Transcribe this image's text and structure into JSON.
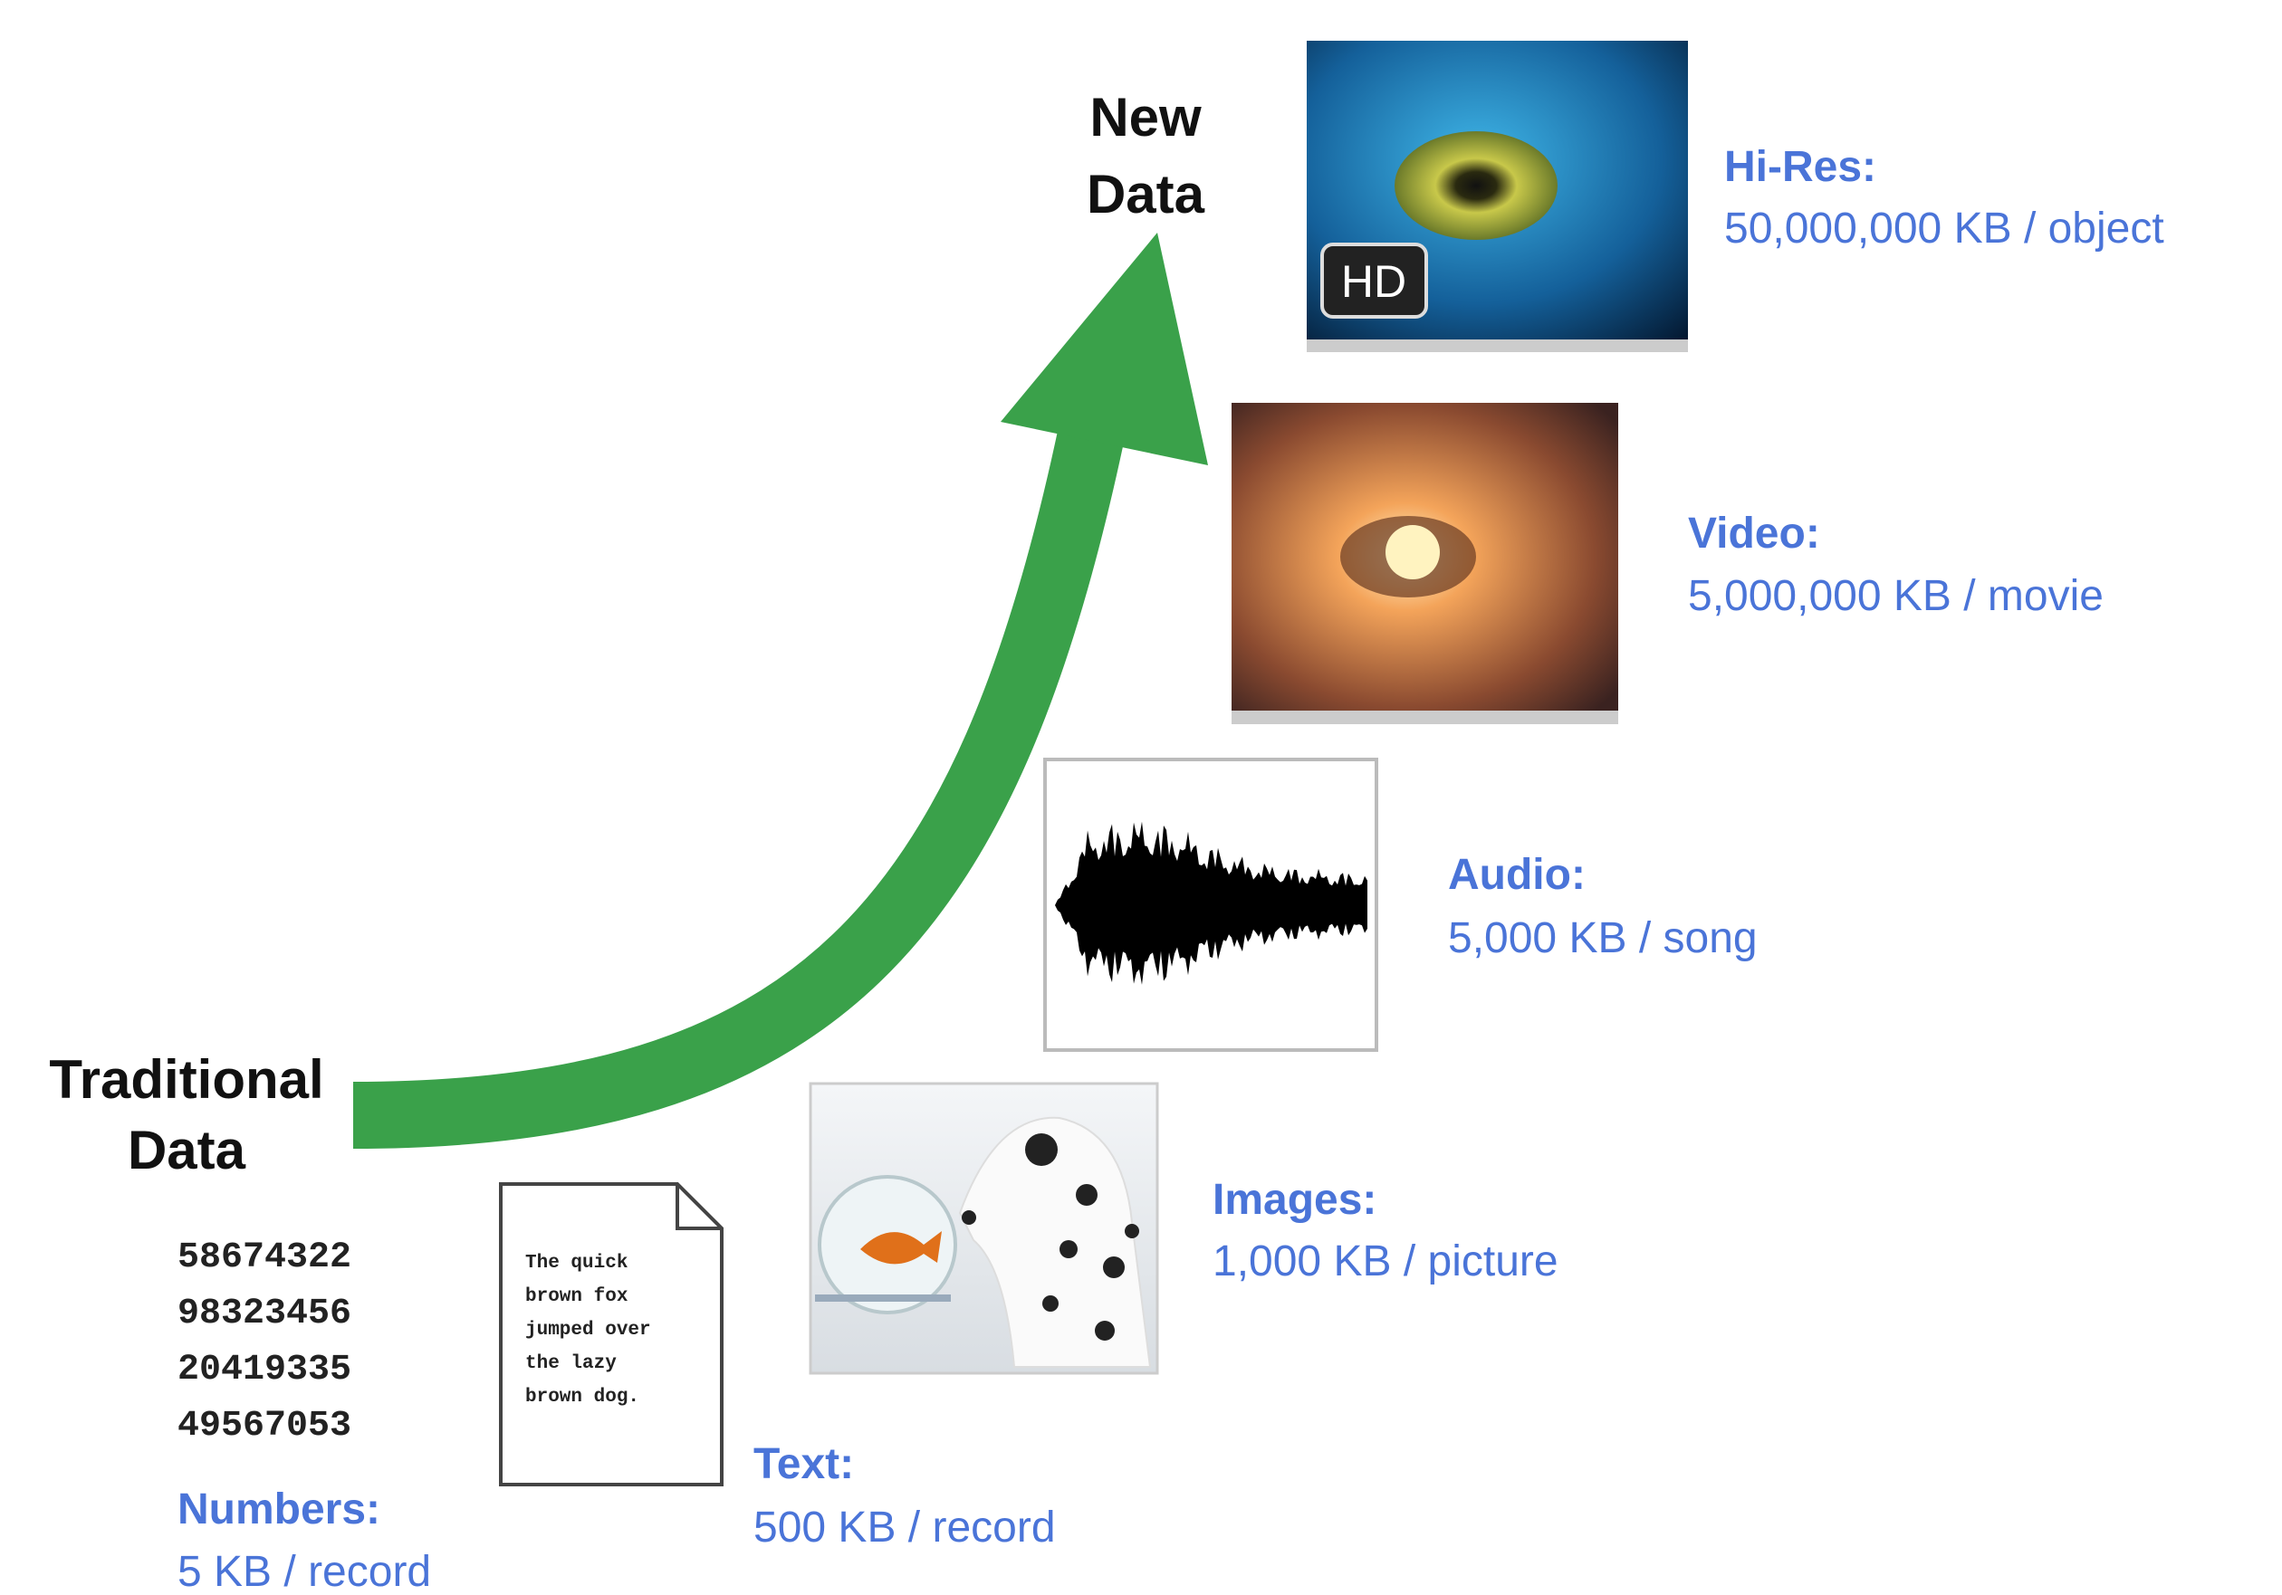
{
  "labels": {
    "new": [
      "New",
      "Data"
    ],
    "traditional": [
      "Traditional",
      "Data"
    ]
  },
  "badge": "HD",
  "items": [
    {
      "name": "Hi-Res:",
      "size": "50,000,000 KB / object"
    },
    {
      "name": "Video:",
      "size": "5,000,000 KB / movie"
    },
    {
      "name": "Audio:",
      "size": "5,000 KB / song"
    },
    {
      "name": "Images:",
      "size": "1,000 KB / picture"
    },
    {
      "name": "Text:",
      "size": "500 KB / record"
    },
    {
      "name": "Numbers:",
      "size": "5 KB / record"
    }
  ],
  "document_lines": [
    "The quick",
    "brown fox",
    "jumped over",
    "the lazy",
    "brown dog."
  ],
  "numbers": [
    "58674322",
    "98323456",
    "20419335",
    "49567053"
  ]
}
